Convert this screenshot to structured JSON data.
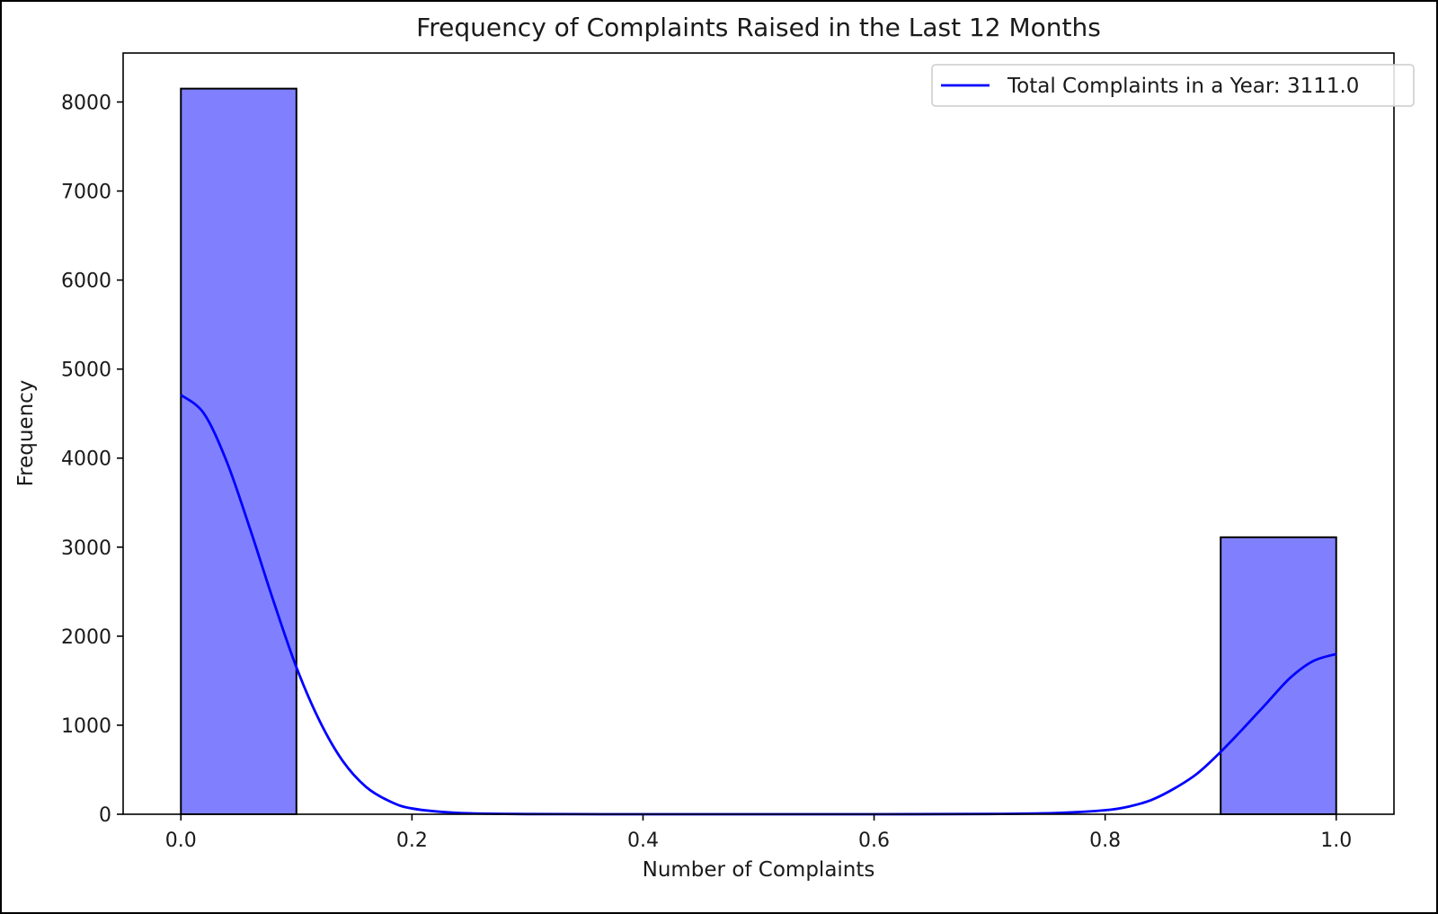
{
  "chart_data": {
    "type": "bar",
    "title": "Frequency of Complaints Raised in the Last 12 Months",
    "xlabel": "Number of Complaints",
    "ylabel": "Frequency",
    "xlim": [
      -0.05,
      1.05
    ],
    "ylim": [
      0,
      8550
    ],
    "x_ticks": [
      0.0,
      0.2,
      0.4,
      0.6,
      0.8,
      1.0
    ],
    "x_tick_labels": [
      "0.0",
      "0.2",
      "0.4",
      "0.6",
      "0.8",
      "1.0"
    ],
    "y_ticks": [
      0,
      1000,
      2000,
      3000,
      4000,
      5000,
      6000,
      7000,
      8000
    ],
    "y_tick_labels": [
      "0",
      "1000",
      "2000",
      "3000",
      "4000",
      "5000",
      "6000",
      "7000",
      "8000"
    ],
    "bins": [
      {
        "x0": 0.0,
        "x1": 0.1,
        "value": 8150
      },
      {
        "x0": 0.9,
        "x1": 1.0,
        "value": 3111
      }
    ],
    "kde": {
      "x": [
        0.0,
        0.02,
        0.04,
        0.06,
        0.08,
        0.1,
        0.12,
        0.14,
        0.16,
        0.18,
        0.2,
        0.24,
        0.3,
        0.4,
        0.5,
        0.6,
        0.7,
        0.76,
        0.8,
        0.82,
        0.84,
        0.86,
        0.88,
        0.9,
        0.92,
        0.94,
        0.96,
        0.98,
        1.0
      ],
      "y": [
        4710,
        4500,
        3950,
        3200,
        2400,
        1650,
        1050,
        600,
        310,
        150,
        65,
        15,
        2,
        0,
        0,
        0,
        3,
        15,
        45,
        85,
        160,
        290,
        460,
        700,
        970,
        1250,
        1530,
        1720,
        1800
      ]
    },
    "legend": {
      "position": "top-right",
      "entries": [
        {
          "label": "Total Complaints in a Year: 3111.0",
          "color": "#0000ff"
        }
      ]
    },
    "colors": {
      "bar_fill": "#8080ff",
      "bar_edge": "#000000",
      "kde_line": "#0000ff"
    },
    "grid": false
  }
}
